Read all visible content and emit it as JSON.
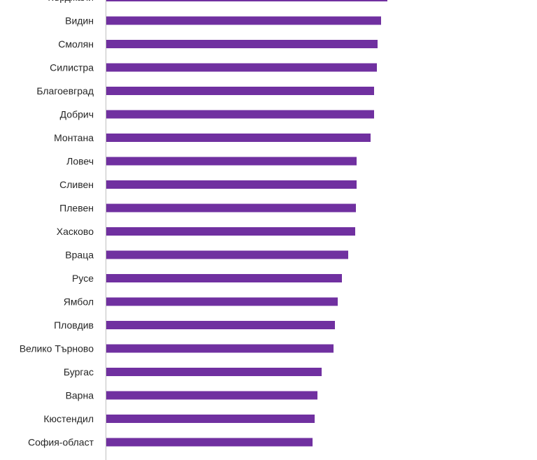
{
  "chart_data": {
    "type": "bar",
    "orientation": "horizontal",
    "categories": [
      "Кърджали",
      "Видин",
      "Смолян",
      "Силистра",
      "Благоевград",
      "Добрич",
      "Монтана",
      "Ловеч",
      "Сливен",
      "Плевен",
      "Хасково",
      "Враца",
      "Русе",
      "Ямбол",
      "Пловдив",
      "Велико Търново",
      "Бургас",
      "Варна",
      "Кюстендил",
      "София-област"
    ],
    "values": [
      402,
      393,
      388,
      387,
      383,
      383,
      378,
      358,
      358,
      357,
      356,
      346,
      337,
      331,
      327,
      325,
      308,
      302,
      298,
      295
    ],
    "xlim": [
      0,
      600
    ],
    "grid": false,
    "legend": "none",
    "bar_color": "#7030a0",
    "axis_color": "#bfbfbf"
  }
}
